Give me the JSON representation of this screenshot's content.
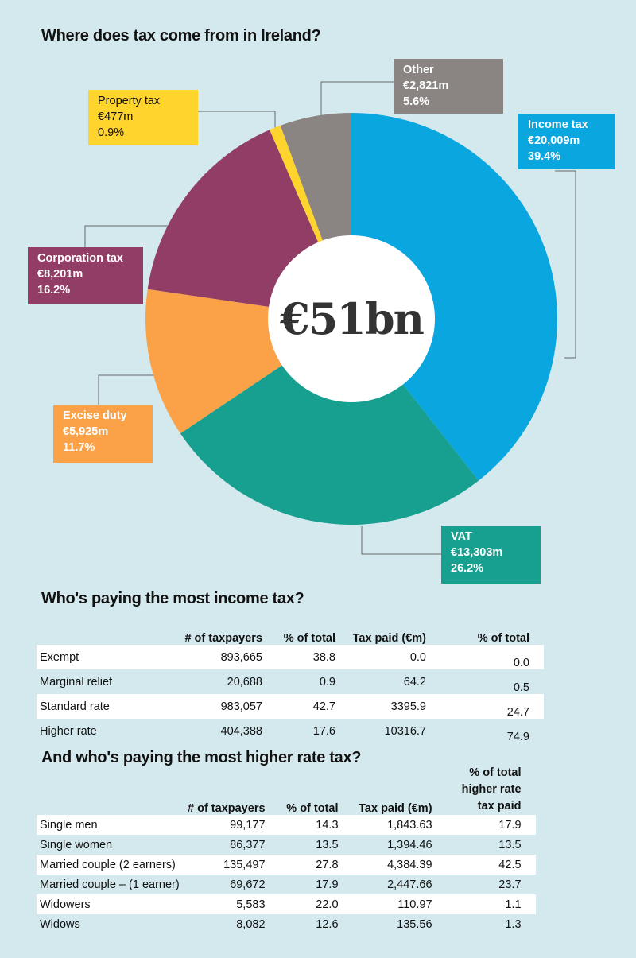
{
  "title": "Where does tax come from in Ireland?",
  "center_label": "€51bn",
  "chart_data": {
    "type": "pie",
    "donut": true,
    "title": "Where does tax come from in Ireland?",
    "center_text": "€51bn",
    "slices": [
      {
        "name": "Income tax",
        "amount": "€20,009m",
        "percent_label": "39.4%",
        "value": 39.4,
        "color": "#0aa6df"
      },
      {
        "name": "VAT",
        "amount": "€13,303m",
        "percent_label": "26.2%",
        "value": 26.2,
        "color": "#17a08f"
      },
      {
        "name": "Excise duty",
        "amount": "€5,925m",
        "percent_label": "11.7%",
        "value": 11.7,
        "color": "#fba248"
      },
      {
        "name": "Corporation tax",
        "amount": "€8,201m",
        "percent_label": "16.2%",
        "value": 16.2,
        "color": "#923d66"
      },
      {
        "name": "Property tax",
        "amount": "€477m",
        "percent_label": "0.9%",
        "value": 0.9,
        "color": "#fed42d"
      },
      {
        "name": "Other",
        "amount": "€2,821m",
        "percent_label": "5.6%",
        "value": 5.6,
        "color": "#8a8583"
      }
    ]
  },
  "income_table": {
    "title": "Who's paying the most income tax?",
    "headers": [
      "",
      "# of taxpayers",
      "% of total",
      "Tax paid (€m)",
      "% of total"
    ],
    "rows": [
      [
        "Exempt",
        "893,665",
        "38.8",
        "0.0",
        "0.0"
      ],
      [
        "Marginal relief",
        "20,688",
        "0.9",
        "64.2",
        "0.5"
      ],
      [
        "Standard rate",
        "983,057",
        "42.7",
        "3395.9",
        "24.7"
      ],
      [
        "Higher rate",
        "404,388",
        "17.6",
        "10316.7",
        "74.9"
      ]
    ]
  },
  "higher_table": {
    "title": "And who's paying the most higher rate tax?",
    "headers": [
      "",
      "# of taxpayers",
      "% of total",
      "Tax paid (€m)",
      "% of total higher rate tax paid"
    ],
    "rows": [
      [
        "Single men",
        "99,177",
        "14.3",
        "1,843.63",
        "17.9"
      ],
      [
        "Single women",
        "86,377",
        "13.5",
        "1,394.46",
        "13.5"
      ],
      [
        "Married couple (2 earners)",
        "135,497",
        "27.8",
        "4,384.39",
        "42.5"
      ],
      [
        "Married couple – (1 earner)",
        "69,672",
        "17.9",
        "2,447.66",
        "23.7"
      ],
      [
        "Widowers",
        "5,583",
        "22.0",
        "110.97",
        "1.1"
      ],
      [
        "Widows",
        "8,082",
        "12.6",
        "135.56",
        "1.3"
      ]
    ]
  }
}
